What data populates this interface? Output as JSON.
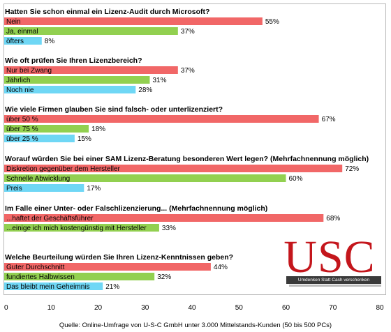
{
  "chart_data": {
    "type": "bar",
    "orientation": "horizontal",
    "xlim": [
      0,
      80
    ],
    "xticks": [
      "0",
      "10",
      "20",
      "30",
      "40",
      "50",
      "60",
      "70",
      "80"
    ],
    "colors": {
      "red": "#f16767",
      "green": "#92d050",
      "blue": "#6fd7f5"
    },
    "groups": [
      {
        "title": "Hatten Sie schon einmal ein Lizenz-Audit durch Microsoft?",
        "bars": [
          {
            "label": "Nein",
            "value": 55,
            "value_label": "55%",
            "color": "red"
          },
          {
            "label": "Ja, einmal",
            "value": 37,
            "value_label": "37%",
            "color": "green"
          },
          {
            "label": "öfters",
            "value": 8,
            "value_label": "8%",
            "color": "blue"
          }
        ]
      },
      {
        "title": "Wie oft prüfen Sie Ihren Lizenzbereich?",
        "bars": [
          {
            "label": "Nur bei Zwang",
            "value": 37,
            "value_label": "37%",
            "color": "red"
          },
          {
            "label": "Jährlich",
            "value": 31,
            "value_label": "31%",
            "color": "green"
          },
          {
            "label": "Noch nie",
            "value": 28,
            "value_label": "28%",
            "color": "blue"
          }
        ]
      },
      {
        "title": "Wie viele Firmen glauben Sie sind falsch- oder unterlizenziert?",
        "bars": [
          {
            "label": "über 50 %",
            "value": 67,
            "value_label": "67%",
            "color": "red"
          },
          {
            "label": "über 75 %",
            "value": 18,
            "value_label": "18%",
            "color": "green"
          },
          {
            "label": "über 25 %",
            "value": 15,
            "value_label": "15%",
            "color": "blue"
          }
        ]
      },
      {
        "title": "Worauf würden Sie bei einer SAM Lizenz-Beratung besonderen Wert legen? (Mehrfachnennung möglich)",
        "bars": [
          {
            "label": "Diskretion gegenüber dem Hersteller",
            "value": 72,
            "value_label": "72%",
            "color": "red"
          },
          {
            "label": "Schnelle Abwicklung",
            "value": 60,
            "value_label": "60%",
            "color": "green"
          },
          {
            "label": "Preis",
            "value": 17,
            "value_label": "17%",
            "color": "blue"
          }
        ]
      },
      {
        "title": "Im Falle einer Unter- oder Falschlizenzierung... (Mehrfachnennung möglich)",
        "bars": [
          {
            "label": "...haftet der Geschäftsführer",
            "value": 68,
            "value_label": "68%",
            "color": "red"
          },
          {
            "label": "...einige ich mich kostengünstig mit Hersteller",
            "value": 33,
            "value_label": "33%",
            "color": "green"
          }
        ]
      },
      {
        "title": "Welche Beurteilung würden Sie Ihren Lizenz-Kenntnissen geben?",
        "bars": [
          {
            "label": "Guter Durchschnitt",
            "value": 44,
            "value_label": "44%",
            "color": "red"
          },
          {
            "label": "fundiertes Halbwissen",
            "value": 32,
            "value_label": "32%",
            "color": "green"
          },
          {
            "label": "Das bleibt mein Geheimnis",
            "value": 21,
            "value_label": "21%",
            "color": "blue"
          }
        ]
      }
    ]
  },
  "logo": {
    "letters": "USC",
    "tagline": "Umdenken Statt Cash verschenken"
  },
  "source": "Quelle: Online-Umfrage von U-S-C GmbH  unter 3.000 Mittelstands-Kunden  (50 bis 500 PCs)"
}
